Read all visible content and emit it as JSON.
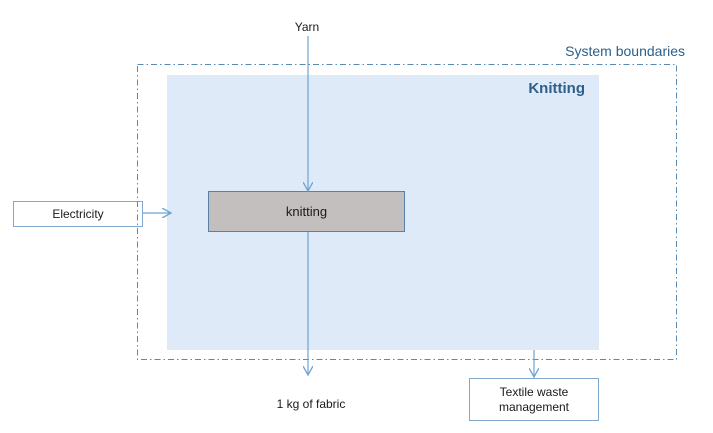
{
  "diagram": {
    "system_boundary_label": "System boundaries",
    "stage_title": "Knitting",
    "process_label": "knitting",
    "inputs": {
      "yarn": "Yarn",
      "electricity": "Electricity"
    },
    "outputs": {
      "fabric": "1 kg of fabric",
      "waste_line1": "Textile waste",
      "waste_line2": "management"
    },
    "colors": {
      "stage_fill": "#deeaf8",
      "process_fill": "#c4bfbf",
      "arrow": "#6fa3d0",
      "boundary": "#5b8ab5",
      "title": "#2e5f8a"
    }
  }
}
